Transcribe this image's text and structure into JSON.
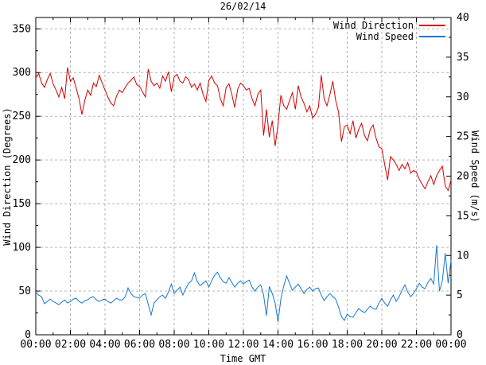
{
  "chart_data": {
    "type": "line",
    "title": "26/02/14",
    "xlabel": "Time GMT",
    "ylabel_left": "Wind Direction (Degrees)",
    "ylabel_right": "Wind Speed (m/s)",
    "grid": true,
    "legend_position": "top-right-inside",
    "x_range_hours": [
      0,
      24
    ],
    "x_major_step_hours": 2,
    "x_minor_step_hours": 1,
    "x_tick_labels": [
      "00:00",
      "02:00",
      "04:00",
      "06:00",
      "08:00",
      "10:00",
      "12:00",
      "14:00",
      "16:00",
      "18:00",
      "20:00",
      "22:00",
      "00:00"
    ],
    "y_left": {
      "range": [
        0,
        363
      ],
      "tick_step": 50,
      "minor_step": 25,
      "tick_labels": [
        "0",
        "50",
        "100",
        "150",
        "200",
        "250",
        "300",
        "350"
      ]
    },
    "y_right": {
      "range": [
        0,
        40
      ],
      "tick_step": 5,
      "minor_step": 2.5,
      "tick_labels": [
        "0",
        "5",
        "10",
        "15",
        "20",
        "25",
        "30",
        "35",
        "40"
      ]
    },
    "sample_interval_minutes": 10,
    "colors": {
      "grid": "#b4b4b4",
      "border": "#000000"
    },
    "series": [
      {
        "name": "Wind Direction",
        "axis": "left",
        "units": "Degrees",
        "color": "#d40000",
        "values": [
          294,
          299,
          288,
          283,
          292,
          299,
          287,
          280,
          272,
          283,
          270,
          306,
          290,
          294,
          282,
          270,
          252,
          268,
          280,
          274,
          288,
          284,
          297,
          288,
          280,
          272,
          265,
          262,
          273,
          280,
          277,
          283,
          288,
          291,
          295,
          286,
          284,
          278,
          272,
          304,
          290,
          285,
          288,
          282,
          296,
          290,
          301,
          278,
          295,
          298,
          290,
          288,
          295,
          292,
          283,
          287,
          280,
          288,
          275,
          267,
          291,
          296,
          288,
          285,
          270,
          262,
          283,
          287,
          275,
          260,
          281,
          288,
          285,
          280,
          282,
          270,
          262,
          275,
          280,
          228,
          258,
          226,
          245,
          216,
          240,
          274,
          262,
          258,
          268,
          277,
          258,
          285,
          272,
          265,
          255,
          262,
          248,
          252,
          260,
          297,
          270,
          262,
          275,
          290,
          268,
          255,
          221,
          238,
          240,
          230,
          245,
          225,
          235,
          242,
          228,
          222,
          235,
          240,
          225,
          215,
          213,
          195,
          177,
          204,
          200,
          195,
          188,
          195,
          190,
          197,
          185,
          188,
          186,
          178,
          172,
          167,
          175,
          182,
          172,
          182,
          188,
          193,
          170,
          165,
          177
        ]
      },
      {
        "name": "Wind Speed",
        "axis": "right",
        "units": "m/s",
        "color": "#1878d2",
        "values": [
          5.4,
          5.0,
          4.8,
          3.9,
          4.2,
          4.5,
          4.2,
          4.0,
          3.8,
          4.1,
          4.4,
          4.0,
          4.2,
          4.5,
          4.6,
          4.2,
          4.0,
          4.3,
          4.4,
          4.7,
          4.8,
          4.4,
          4.2,
          4.4,
          4.5,
          4.2,
          4.0,
          4.3,
          4.6,
          4.4,
          4.4,
          4.8,
          5.9,
          5.2,
          4.8,
          4.7,
          4.6,
          5.0,
          5.2,
          3.8,
          2.5,
          4.0,
          4.4,
          4.8,
          5.0,
          4.6,
          5.4,
          6.4,
          5.2,
          5.6,
          6.0,
          5.0,
          5.8,
          6.5,
          6.8,
          7.8,
          6.7,
          6.2,
          6.5,
          6.8,
          6.0,
          6.8,
          7.5,
          7.9,
          7.2,
          6.7,
          6.5,
          7.2,
          6.6,
          6.0,
          6.5,
          6.8,
          6.4,
          6.7,
          6.9,
          6.0,
          5.5,
          6.0,
          6.3,
          5.0,
          2.4,
          6.1,
          5.2,
          4.0,
          1.6,
          4.5,
          6.2,
          7.4,
          6.5,
          5.6,
          6.0,
          6.4,
          5.8,
          5.2,
          5.7,
          6.0,
          5.5,
          5.8,
          5.9,
          5.0,
          4.3,
          4.8,
          5.2,
          4.8,
          4.5,
          3.5,
          2.3,
          1.8,
          2.6,
          2.3,
          2.2,
          2.8,
          3.3,
          3.0,
          2.8,
          3.2,
          3.6,
          3.3,
          3.2,
          4.0,
          4.6,
          4.0,
          3.6,
          4.4,
          5.0,
          4.2,
          4.8,
          5.6,
          6.3,
          5.4,
          4.8,
          5.2,
          5.8,
          6.5,
          6.0,
          5.8,
          6.6,
          7.1,
          6.4,
          11.3,
          5.5,
          6.8,
          10.3,
          6.5,
          9.4
        ]
      }
    ]
  }
}
